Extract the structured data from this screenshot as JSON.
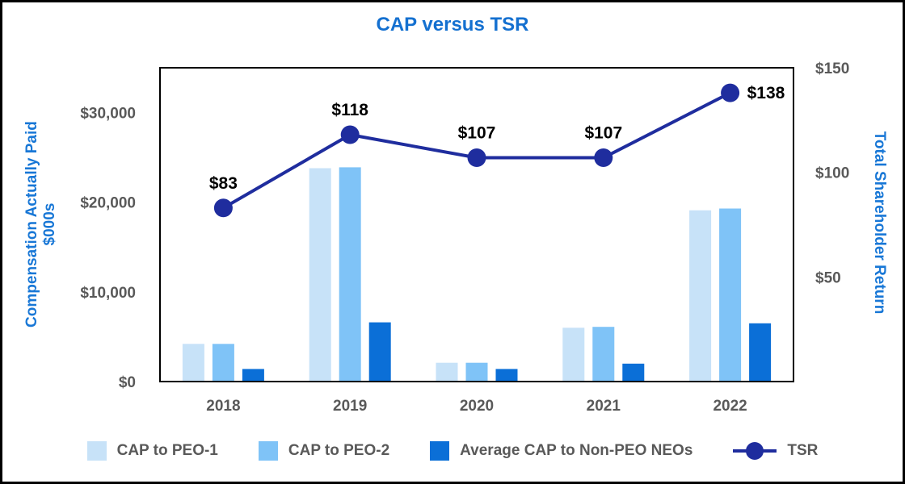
{
  "title": "CAP versus TSR",
  "colors": {
    "title_text": "#1470D0",
    "axis_title_text": "#1877D6",
    "tick_text": "#595959",
    "data_label_text": "#000000",
    "plot_border": "#000000",
    "page_border": "#000000",
    "background": "#FFFFFF"
  },
  "chart_data": {
    "type": "combo-bar-line",
    "categories": [
      "2018",
      "2019",
      "2020",
      "2021",
      "2022"
    ],
    "series": [
      {
        "name": "CAP to PEO-1",
        "type": "bar",
        "axis": "left",
        "color": "#C7E2F8",
        "values": [
          4200,
          23800,
          2100,
          6000,
          19100
        ]
      },
      {
        "name": "CAP to PEO-2",
        "type": "bar",
        "axis": "left",
        "color": "#7FC3F7",
        "values": [
          4200,
          23900,
          2100,
          6100,
          19300
        ]
      },
      {
        "name": "Average CAP to Non-PEO NEOs",
        "type": "bar",
        "axis": "left",
        "color": "#0B6FD7",
        "values": [
          1400,
          6600,
          1400,
          2000,
          6500
        ]
      },
      {
        "name": "TSR",
        "type": "line",
        "axis": "right",
        "color": "#1F2D9E",
        "values": [
          83,
          118,
          107,
          107,
          138
        ],
        "point_labels": [
          "$83",
          "$118",
          "$107",
          "$107",
          "$138"
        ],
        "label_positions": [
          "above",
          "above",
          "above",
          "above",
          "right"
        ]
      }
    ],
    "left_axis": {
      "title": "Compensation Actually Paid $000s",
      "max": 35000,
      "ticks": [
        {
          "label": "$0",
          "value": 0
        },
        {
          "label": "$10,000",
          "value": 10000
        },
        {
          "label": "$20,000",
          "value": 20000
        },
        {
          "label": "$30,000",
          "value": 30000
        }
      ]
    },
    "right_axis": {
      "title": "Total Shareholder Return",
      "max": 150,
      "ticks": [
        {
          "label": "$50",
          "value": 50
        },
        {
          "label": "$100",
          "value": 100
        },
        {
          "label": "$150",
          "value": 150
        }
      ]
    },
    "legend_position": "bottom",
    "grid": false
  }
}
